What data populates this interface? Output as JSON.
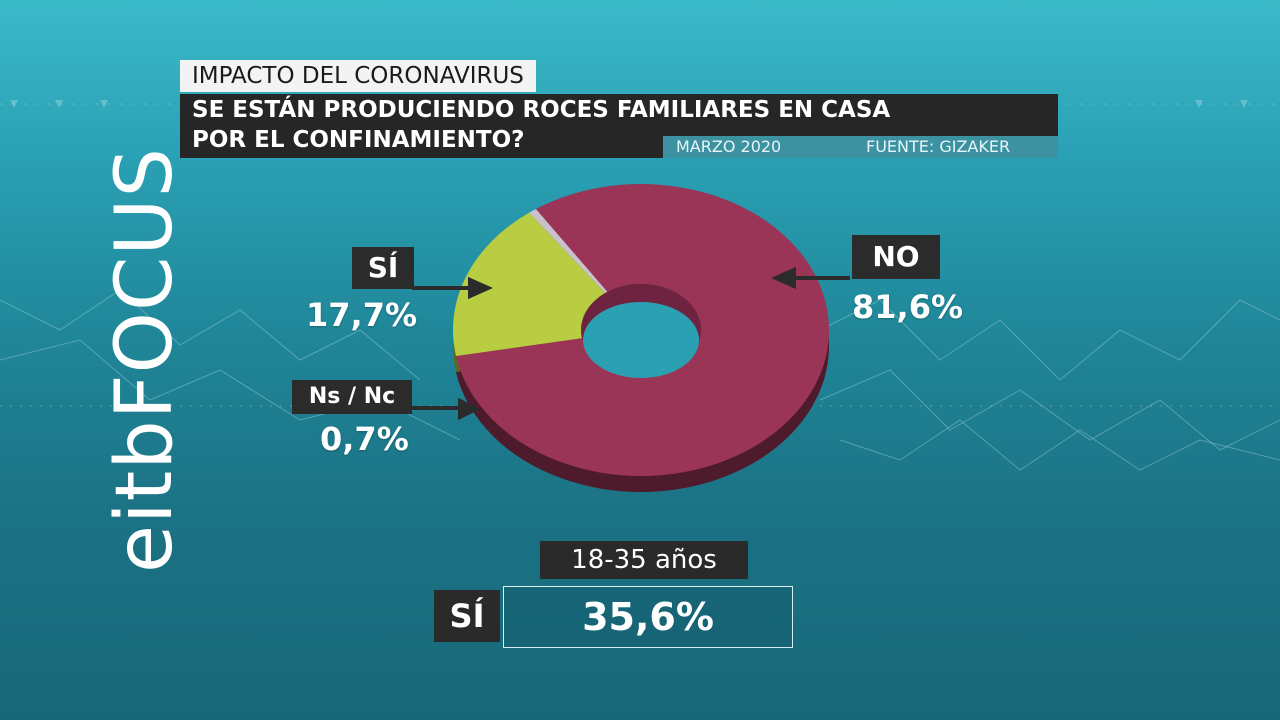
{
  "brand": {
    "logo_text": "eitbFOCUS"
  },
  "header": {
    "kicker": "IMPACTO DEL CORONAVIRUS",
    "question_line1": "SE ESTÁN PRODUCIENDO ROCES FAMILIARES EN CASA",
    "question_line2": "POR EL CONFINAMIENTO?",
    "date": "MARZO 2020",
    "source": "FUENTE: GIZAKER"
  },
  "chart_data": {
    "type": "pie",
    "style": "3d-donut",
    "title": "SE ESTÁN PRODUCIENDO ROCES FAMILIARES EN CASA POR EL CONFINAMIENTO?",
    "slices": [
      {
        "label": "NO",
        "value": 81.6,
        "display": "81,6%",
        "color": "#9b3558"
      },
      {
        "label": "SÍ",
        "value": 17.7,
        "display": "17,7%",
        "color": "#b9cd43"
      },
      {
        "label": "Ns / Nc",
        "value": 0.7,
        "display": "0,7%",
        "color": "#c9c2cc"
      }
    ]
  },
  "subgroup": {
    "label": "18-35 años",
    "answer_label": "SÍ",
    "value": "35,6%"
  },
  "colors": {
    "no": "#9b3558",
    "si": "#b9cd43",
    "nsnc": "#c9c2cc",
    "tag_bg": "#2b2b2b"
  }
}
